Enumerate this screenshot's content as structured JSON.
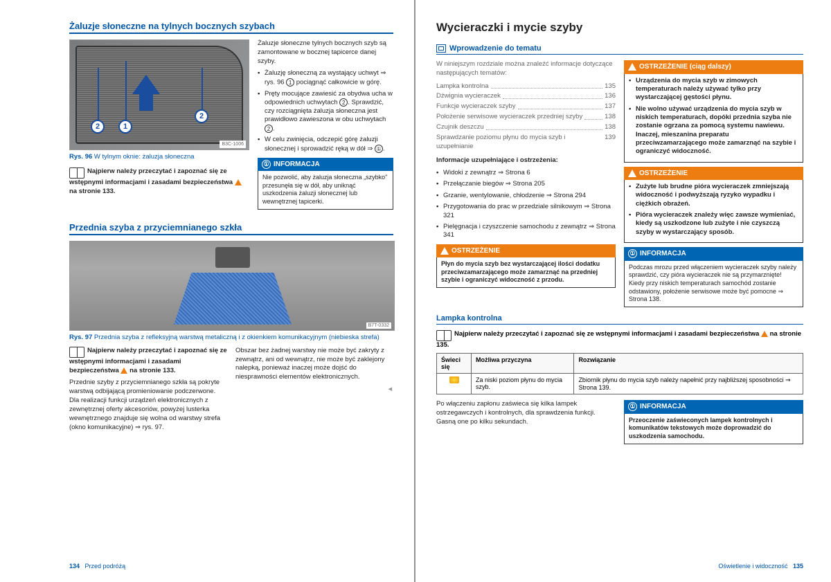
{
  "left": {
    "h_sunblind": "Żaluzje słoneczne na tylnych bocznych szybach",
    "fig96_caption_b": "Rys. 96",
    "fig96_caption": " W tylnym oknie: żaluzja słoneczna",
    "fig96_code": "B3C-1006",
    "read_first_1": "Najpierw należy przeczytać i zapoznać się ze wstępnymi informacjami i zasadami bezpieczeństwa ",
    "read_first_1b": " na stronie 133.",
    "r1_p1": "Żaluzje słoneczne tylnych bocznych szyb są zamontowane w bocznej tapicerce danej szyby.",
    "r1_b1": "Żaluzję słoneczną za wystający uchwyt ⇒ rys. 96 ",
    "r1_b1b": " pociągnąć całkowicie w górę.",
    "r1_b2": "Pręty mocujące zawiesić za obydwa ucha w odpowiednich uchwytach ",
    "r1_b2b": ". Sprawdzić, czy rozciągnięta żaluzja słoneczna jest prawidłowo zawieszona w obu uchwytach ",
    "r1_b3": "W celu zwinięcia, odczepić górę żaluzji słonecznej i sprowadzić ręką w dół ⇒ ",
    "info_h": "INFORMACJA",
    "info1_body": "Nie pozwolić, aby żaluzja słoneczna „szybko\" przesunęła się w dół, aby uniknąć uszkodzenia żaluzji słonecznej lub wewnętrznej tapicerki.",
    "h_windshield": "Przednia szyba z przyciemnianego szkła",
    "fig97_caption_b": "Rys. 97",
    "fig97_caption": " Przednia szyba z refleksyjną warstwą metaliczną i z okienkiem komunikacyjnym (niebieska strefa)",
    "fig97_code": "B7T-0332",
    "l2_p1": "Przednie szyby z przyciemnianego szkła są pokryte warstwą odbijającą promieniowanie podczerwone. Dla realizacji funkcji urządzeń elektronicznych z zewnętrznej oferty akcesoriów, powyżej lusterka wewnętrznego znajduje się wolna od warstwy strefa (okno komunikacyjne) ⇒ rys. 97.",
    "r2_p1": "Obszar bez żadnej warstwy nie może być zakryty z zewnątrz, ani od wewnątrz, nie może być zaklejony nalepką, ponieważ inaczej może dojść do niesprawności elementów elektronicznych.",
    "footer_l_num": "134",
    "footer_l_txt": "Przed podróżą"
  },
  "right": {
    "h_main": "Wycieraczki i mycie szyby",
    "h_intro": "Wprowadzenie do tematu",
    "intro_txt": "W niniejszym rozdziale można znaleźć informacje dotyczące następujących tematów:",
    "toc": [
      {
        "t": "Lampka kontrolna",
        "p": "135"
      },
      {
        "t": "Dźwignia wycieraczek",
        "p": "136"
      },
      {
        "t": "Funkcje wycieraczek szyby",
        "p": "137"
      },
      {
        "t": "Położenie serwisowe wycieraczek przedniej szyby",
        "p": "138"
      },
      {
        "t": "Czujnik deszczu",
        "p": "138"
      },
      {
        "t": "Sprawdzanie poziomu płynu do mycia szyb i uzupełnianie",
        "p": "139"
      }
    ],
    "info_sup_h": "Informacje uzupełniające i ostrzeżenia:",
    "sup": [
      "Widoki z zewnątrz ⇒ Strona 6",
      "Przełączanie biegów ⇒ Strona 205",
      "Grzanie, wentylowanie, chłodzenie ⇒ Strona 294",
      "Przygotowania do prac w przedziale silnikowym ⇒ Strona 321",
      "Pielęgnacja i czyszczenie samochodu z zewnątrz ⇒ Strona 341"
    ],
    "warn_h": "OSTRZEŻENIE",
    "warn1_body": "Płyn do mycia szyb bez wystarczającej ilości dodatku przeciwzamarzającego może zamarznąć na przedniej szybie i ograniczyć widoczność z przodu.",
    "warn_cont_h": "OSTRZEŻENIE (ciąg dalszy)",
    "warn2_b1": "Urządzenia do mycia szyb w zimowych temperaturach należy używać tylko przy wystarczającej gęstości płynu.",
    "warn2_b2": "Nie wolno używać urządzenia do mycia szyb w niskich temperaturach, dopóki przednia szyba nie zostanie ogrzana za pomocą systemu nawiewu. Inaczej, mieszanina preparatu przeciwzamarzającego może zamarznąć na szybie i ograniczyć widoczność.",
    "warn3_b1": "Zużyte lub brudne pióra wycieraczek zmniejszają widoczność i podwyższają ryzyko wypadku i ciężkich obrażeń.",
    "warn3_b2": "Pióra wycieraczek znależy więc zawsze wymieniać, kiedy są uszkodzone lub zużyte i nie czyszczą szyby w wystarczający sposób.",
    "info2_body": "Podczas mrozu przed włączeniem wycieraczek szyby należy sprawdzić, czy pióra wycieraczek nie są przymarznięte! Kiedy przy niskich temperaturach samochód zostanie odstawiony, położenie serwisowe może być pomocne ⇒ Strona 138.",
    "h_lamp": "Lampka kontrolna",
    "lamp_read": "Najpierw należy przeczytać i zapoznać się ze wstępnymi informacjami i zasadami bezpieczeństwa ",
    "lamp_read_b": " na stronie 135.",
    "tbl_h1": "Świeci się",
    "tbl_h2": "Możliwa przyczyna",
    "tbl_h3": "Rozwiązanie",
    "tbl_c1": "Za niski poziom płynu do mycia szyb.",
    "tbl_c2": "Zbiornik płynu do mycia szyb należy napełnić przy najbliższej sposobności ⇒ Strona 139.",
    "lamp_p": "Po włączeniu zapłonu zaświeca się kilka lampek ostrzegawczych i kontrolnych, dla sprawdzenia funkcji. Gasną one po kilku sekundach.",
    "info3_body": "Przeoczenie zaświeconych lampek kontrolnych i komunikatów tekstowych może doprowadzić do uszkodzenia samochodu.",
    "footer_r_txt": "Oświetlenie i widoczność",
    "footer_r_num": "135"
  },
  "colors": {
    "blue": "#0055a5",
    "orange": "#ee7d11"
  }
}
